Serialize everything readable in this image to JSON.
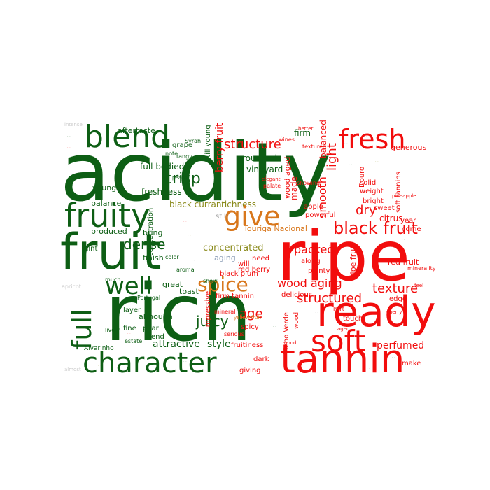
{
  "palette": {
    "green": "#0d5e14",
    "red": "#f20d0d",
    "orange": "#d8771c",
    "olive": "#8a8a1a",
    "gray": "#999999",
    "light_gray": "#cccccc",
    "blue_gray": "#8fa0b8"
  },
  "words": [
    {
      "text": "acidity",
      "color": "green"
    },
    {
      "text": "rich",
      "color": "green"
    },
    {
      "text": "ripe",
      "color": "red"
    },
    {
      "text": "fruit",
      "color": "green"
    },
    {
      "text": "tannin",
      "color": "red"
    },
    {
      "text": "ready",
      "color": "red"
    },
    {
      "text": "fruity",
      "color": "green"
    },
    {
      "text": "blend",
      "color": "green"
    },
    {
      "text": "character",
      "color": "green"
    },
    {
      "text": "fresh",
      "color": "red"
    },
    {
      "text": "soft",
      "color": "red"
    },
    {
      "text": "give",
      "color": "orange"
    },
    {
      "text": "full",
      "color": "green"
    },
    {
      "text": "well",
      "color": "green"
    },
    {
      "text": "spice",
      "color": "orange"
    },
    {
      "text": "black fruit",
      "color": "red"
    },
    {
      "text": "structure",
      "color": "red"
    },
    {
      "text": "crisp",
      "color": "green"
    },
    {
      "text": "dense",
      "color": "green"
    },
    {
      "text": "juicy",
      "color": "green"
    },
    {
      "text": "texture",
      "color": "red"
    },
    {
      "text": "structured",
      "color": "red"
    },
    {
      "text": "wood aging",
      "color": "red"
    },
    {
      "text": "smooth",
      "color": "red"
    },
    {
      "text": "light",
      "color": "red"
    },
    {
      "text": "dry",
      "color": "red"
    },
    {
      "text": "age",
      "color": "red"
    },
    {
      "text": "attractive",
      "color": "green"
    },
    {
      "text": "style",
      "color": "green"
    },
    {
      "text": "perfumed",
      "color": "red"
    },
    {
      "text": "packed",
      "color": "red"
    },
    {
      "text": "concentrated",
      "color": "olive"
    },
    {
      "text": "full bodied",
      "color": "green"
    },
    {
      "text": "freshness",
      "color": "green"
    },
    {
      "text": "aftertaste",
      "color": "green"
    },
    {
      "text": "berry fruit",
      "color": "red"
    },
    {
      "text": "rounded",
      "color": "green"
    },
    {
      "text": "vineyard",
      "color": "green"
    },
    {
      "text": "firm",
      "color": "green"
    },
    {
      "text": "balanced",
      "color": "red"
    },
    {
      "text": "wood aged",
      "color": "red"
    },
    {
      "text": "made",
      "color": "red"
    },
    {
      "text": "black currant",
      "color": "olive"
    },
    {
      "text": "richness",
      "color": "olive"
    },
    {
      "text": "Touriga Nacional",
      "color": "orange"
    },
    {
      "text": "concentration",
      "color": "green"
    },
    {
      "text": "finish",
      "color": "green"
    },
    {
      "text": "young",
      "color": "green"
    },
    {
      "text": "balance",
      "color": "green"
    },
    {
      "text": "produced",
      "color": "green"
    },
    {
      "text": "bring",
      "color": "green"
    },
    {
      "text": "hint",
      "color": "green"
    },
    {
      "text": "great",
      "color": "green"
    },
    {
      "text": "toast",
      "color": "green"
    },
    {
      "text": "layer",
      "color": "green"
    },
    {
      "text": "although",
      "color": "green"
    },
    {
      "text": "fine",
      "color": "green"
    },
    {
      "text": "pear",
      "color": "green"
    },
    {
      "text": "end",
      "color": "green"
    },
    {
      "text": "grape",
      "color": "green"
    },
    {
      "text": "still young",
      "color": "green"
    },
    {
      "text": "still",
      "color": "gray"
    },
    {
      "text": "aging",
      "color": "blue_gray"
    },
    {
      "text": "red berry",
      "color": "red"
    },
    {
      "text": "black plum",
      "color": "red"
    },
    {
      "text": "firm tannin",
      "color": "red"
    },
    {
      "text": "impressive",
      "color": "red"
    },
    {
      "text": "spicy",
      "color": "red"
    },
    {
      "text": "fruitiness",
      "color": "red"
    },
    {
      "text": "dark",
      "color": "red"
    },
    {
      "text": "giving",
      "color": "red"
    },
    {
      "text": "will",
      "color": "red"
    },
    {
      "text": "need",
      "color": "red"
    },
    {
      "text": "along",
      "color": "red"
    },
    {
      "text": "plenty",
      "color": "red"
    },
    {
      "text": "delicious",
      "color": "red"
    },
    {
      "text": "powerful",
      "color": "red"
    },
    {
      "text": "apple",
      "color": "red"
    },
    {
      "text": "solid",
      "color": "red"
    },
    {
      "text": "weight",
      "color": "red"
    },
    {
      "text": "bright",
      "color": "red"
    },
    {
      "text": "citrus",
      "color": "red"
    },
    {
      "text": "sweet",
      "color": "red"
    },
    {
      "text": "red fruit",
      "color": "red"
    },
    {
      "text": "soft tannins",
      "color": "red"
    },
    {
      "text": "generous",
      "color": "red"
    },
    {
      "text": "year",
      "color": "red"
    },
    {
      "text": "come",
      "color": "red"
    },
    {
      "text": "edge",
      "color": "red"
    },
    {
      "text": "touch",
      "color": "red"
    },
    {
      "text": "make",
      "color": "red"
    },
    {
      "text": "Douro",
      "color": "red"
    },
    {
      "text": "Vinho Verde",
      "color": "red"
    },
    {
      "text": "ripe fruit",
      "color": "red"
    },
    {
      "text": "wood",
      "color": "red"
    },
    {
      "text": "mineral",
      "color": "red"
    },
    {
      "text": "Alvarinho",
      "color": "green"
    },
    {
      "text": "Syrah",
      "color": "green"
    },
    {
      "text": "Portugal",
      "color": "green"
    },
    {
      "text": "estate",
      "color": "green"
    },
    {
      "text": "color",
      "color": "green"
    },
    {
      "text": "aroma",
      "color": "green"
    },
    {
      "text": "show",
      "color": "green"
    },
    {
      "text": "note",
      "color": "green"
    },
    {
      "text": "tangy",
      "color": "green"
    },
    {
      "text": "much",
      "color": "green"
    },
    {
      "text": "peach",
      "color": "green"
    },
    {
      "text": "lively",
      "color": "green"
    },
    {
      "text": "serious",
      "color": "red"
    },
    {
      "text": "textured",
      "color": "red"
    },
    {
      "text": "showing",
      "color": "red"
    },
    {
      "text": "palate",
      "color": "red"
    },
    {
      "text": "wines",
      "color": "red"
    },
    {
      "text": "better",
      "color": "red"
    },
    {
      "text": "elegant",
      "color": "red"
    },
    {
      "text": "minerality",
      "color": "red"
    },
    {
      "text": "pineapple",
      "color": "red"
    },
    {
      "text": "yellow fruit",
      "color": "orange"
    },
    {
      "text": "Port",
      "color": "red"
    },
    {
      "text": "good",
      "color": "red"
    },
    {
      "text": "aged",
      "color": "red"
    },
    {
      "text": "feel",
      "color": "red"
    },
    {
      "text": "cherry",
      "color": "red"
    },
    {
      "text": "apricot",
      "color": "light_gray"
    },
    {
      "text": "intense",
      "color": "light_gray"
    },
    {
      "text": "almost",
      "color": "light_gray"
    }
  ]
}
